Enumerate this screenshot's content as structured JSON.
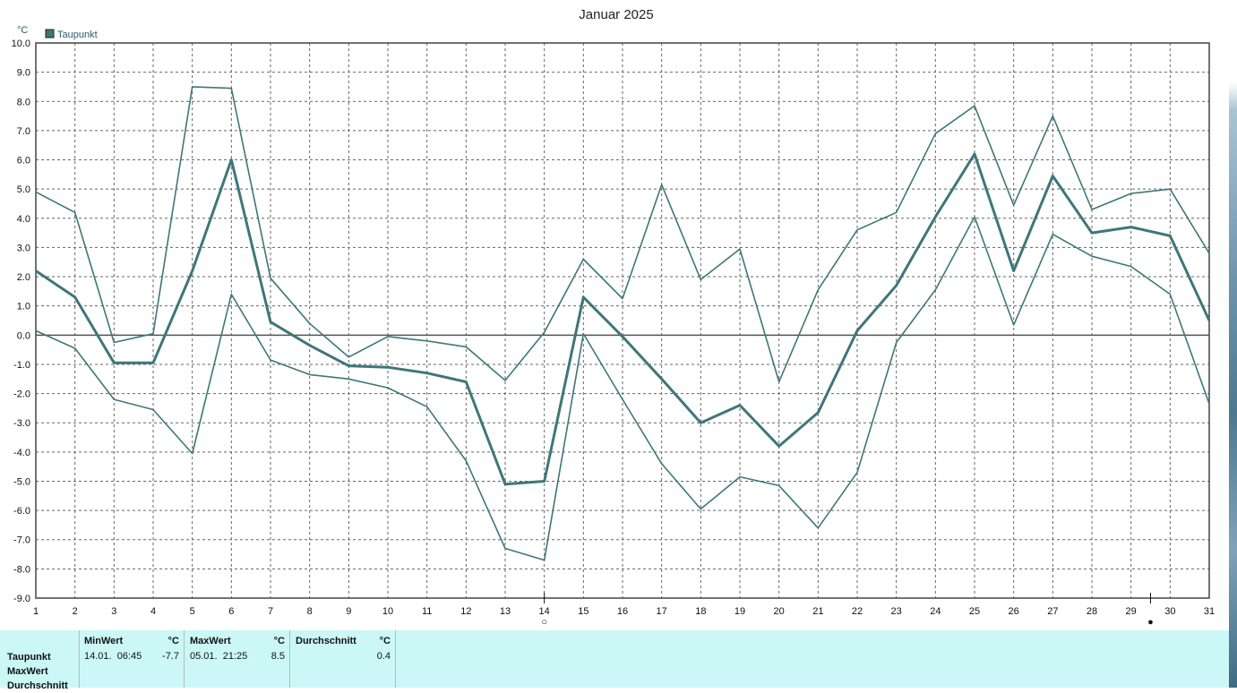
{
  "title": "Januar 2025",
  "unit_label": "°C",
  "legend": {
    "label": "Taupunkt",
    "color": "#3f767a"
  },
  "colors": {
    "series": "#3f767a",
    "grid": "#666666",
    "zero_line": "#555555",
    "axis": "#444444",
    "panel_bg": "#cbf7f7"
  },
  "chart_data": {
    "type": "line",
    "title": "Januar 2025",
    "ylabel": "°C",
    "ylim": [
      -9.0,
      10.0
    ],
    "yticks": [
      "10.0",
      "9.0",
      "8.0",
      "7.0",
      "6.0",
      "5.0",
      "4.0",
      "3.0",
      "2.0",
      "1.0",
      "0.0",
      "-1.0",
      "-2.0",
      "-3.0",
      "-4.0",
      "-5.0",
      "-6.0",
      "-7.0",
      "-8.0",
      "-9.0"
    ],
    "x": [
      1,
      2,
      3,
      4,
      5,
      6,
      7,
      8,
      9,
      10,
      11,
      12,
      13,
      14,
      15,
      16,
      17,
      18,
      19,
      20,
      21,
      22,
      23,
      24,
      25,
      26,
      27,
      28,
      29,
      30,
      31
    ],
    "xlim": [
      1,
      31
    ],
    "grid": true,
    "legend_position": "top-left",
    "moon_phases": [
      {
        "day": 14,
        "symbol": "○"
      },
      {
        "day": 29.5,
        "symbol": "●"
      }
    ],
    "series": [
      {
        "name": "Taupunkt",
        "role": "avg",
        "values": [
          2.2,
          1.3,
          -0.95,
          -0.95,
          2.2,
          6.0,
          0.45,
          -0.35,
          -1.05,
          -1.1,
          -1.3,
          -1.6,
          -5.1,
          -5.0,
          1.3,
          -0.05,
          -1.5,
          -3.0,
          -2.4,
          -3.8,
          -2.65,
          0.15,
          1.7,
          4.05,
          6.2,
          2.2,
          5.45,
          3.5,
          3.7,
          3.4,
          0.5
        ]
      },
      {
        "role": "max",
        "values": [
          4.9,
          4.2,
          -0.25,
          0.05,
          8.5,
          8.45,
          1.95,
          0.4,
          -0.75,
          -0.05,
          -0.2,
          -0.4,
          -1.55,
          0.1,
          2.6,
          1.25,
          5.15,
          1.9,
          2.95,
          -1.6,
          1.55,
          3.6,
          4.2,
          6.9,
          7.85,
          4.45,
          7.5,
          4.3,
          4.85,
          5.0,
          2.8
        ]
      },
      {
        "role": "min",
        "values": [
          0.15,
          -0.45,
          -2.2,
          -2.55,
          -4.05,
          1.4,
          -0.85,
          -1.35,
          -1.5,
          -1.8,
          -2.45,
          -4.3,
          -7.3,
          -7.7,
          0.05,
          -2.2,
          -4.4,
          -5.95,
          -4.85,
          -5.15,
          -6.6,
          -4.7,
          -0.25,
          1.55,
          4.05,
          0.35,
          3.45,
          2.7,
          2.35,
          1.4,
          -2.35
        ]
      }
    ]
  },
  "stats": {
    "row_labels": [
      "Taupunkt",
      "MaxWert",
      "Durchschnitt"
    ],
    "min": {
      "header": "MinWert",
      "unit": "°C",
      "when": "14.01.  06:45",
      "value": "-7.7"
    },
    "max": {
      "header": "MaxWert",
      "unit": "°C",
      "when": "05.01.  21:25",
      "value": "8.5"
    },
    "avg": {
      "header": "Durchschnitt",
      "unit": "°C",
      "value": "0.4"
    }
  }
}
